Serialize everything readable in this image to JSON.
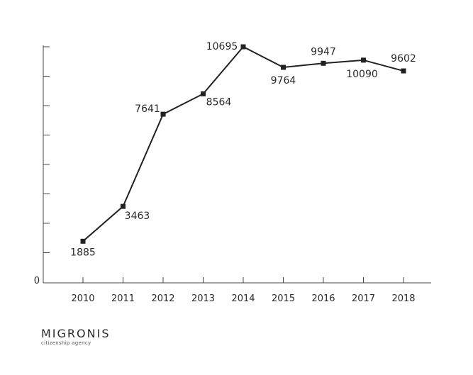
{
  "chart_data": {
    "type": "line",
    "categories": [
      "2010",
      "2011",
      "2012",
      "2013",
      "2014",
      "2015",
      "2016",
      "2017",
      "2018"
    ],
    "values": [
      1885,
      3463,
      7641,
      8564,
      10695,
      9764,
      9947,
      10090,
      9602
    ],
    "data_labels": [
      "1885",
      "3463",
      "7641",
      "8564",
      "10695",
      "9764",
      "9947",
      "10090",
      "9602"
    ],
    "y_tick_labels": [
      "0"
    ],
    "ylim": [
      0,
      10695
    ],
    "grid": false,
    "line_color": "#222222",
    "marker": "square"
  },
  "brand": {
    "name": "MIGRONIS",
    "tagline": "citizenship agency"
  }
}
